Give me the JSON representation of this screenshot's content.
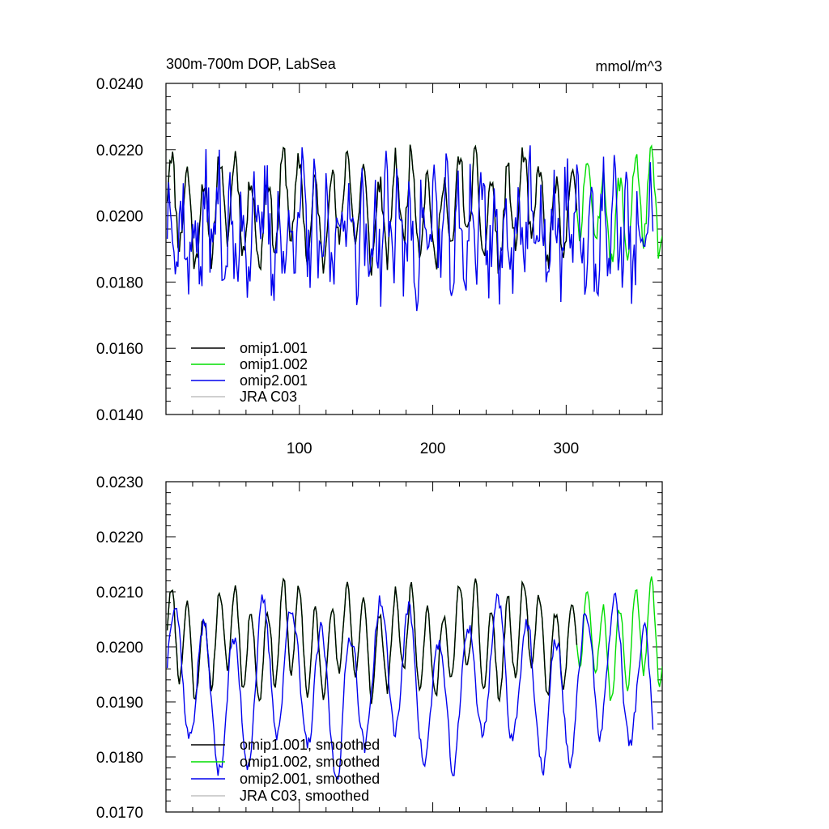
{
  "chart_data": [
    {
      "type": "line",
      "title": "300m-700m DOP, LabSea",
      "units": "mmol/m^3",
      "xlim": [
        0,
        372
      ],
      "ylim": [
        0.014,
        0.024
      ],
      "xticks": [
        100,
        200,
        300
      ],
      "xtick_labels": [
        "100",
        "200",
        "300"
      ],
      "yticks": [
        0.014,
        0.016,
        0.018,
        0.02,
        0.022,
        0.024
      ],
      "ytick_labels": [
        "0.0140",
        "0.0160",
        "0.0180",
        "0.0200",
        "0.0220",
        "0.0240"
      ],
      "legend_position": "bottom-left",
      "series": [
        {
          "name": "omip1.001",
          "color": "#000000",
          "length": 308,
          "seed": 11,
          "base": 0.0202,
          "amp": 0.0013,
          "period": 12,
          "noise": 0.0004
        },
        {
          "name": "omip1.002",
          "color": "#00dd00",
          "length": 372,
          "seed": 11,
          "base": 0.0202,
          "amp": 0.0013,
          "period": 12,
          "noise": 0.0004
        },
        {
          "name": "omip2.001",
          "color": "#0000ee",
          "length": 365,
          "seed": 37,
          "base": 0.0195,
          "amp": 0.0012,
          "period": 9,
          "noise": 0.0012
        },
        {
          "name": "JRA C03",
          "color": "#c0c0c0",
          "length": 0
        }
      ]
    },
    {
      "type": "line",
      "title": "",
      "units": "",
      "xlim": [
        0,
        372
      ],
      "ylim": [
        0.017,
        0.023
      ],
      "xticks": [
        100,
        200,
        300
      ],
      "xtick_labels": [
        "",
        "",
        ""
      ],
      "yticks": [
        0.017,
        0.018,
        0.019,
        0.02,
        0.021,
        0.022,
        0.023
      ],
      "ytick_labels": [
        "0.0170",
        "0.0180",
        "0.0190",
        "0.0200",
        "0.0210",
        "0.0220",
        "0.0230"
      ],
      "legend_position": "bottom-left",
      "series": [
        {
          "name": "omip1.001, smoothed",
          "color": "#000000",
          "length": 308,
          "seed": 11,
          "base": 0.0201,
          "amp": 0.0008,
          "period": 12,
          "noise": 0.0003
        },
        {
          "name": "omip1.002, smoothed",
          "color": "#00dd00",
          "length": 372,
          "seed": 11,
          "base": 0.0201,
          "amp": 0.0008,
          "period": 12,
          "noise": 0.0003
        },
        {
          "name": "omip2.001, smoothed",
          "color": "#0000ee",
          "length": 365,
          "seed": 37,
          "base": 0.0193,
          "amp": 0.0012,
          "period": 22,
          "noise": 0.0004
        },
        {
          "name": "JRA C03, smoothed",
          "color": "#c0c0c0",
          "length": 0
        }
      ]
    }
  ]
}
